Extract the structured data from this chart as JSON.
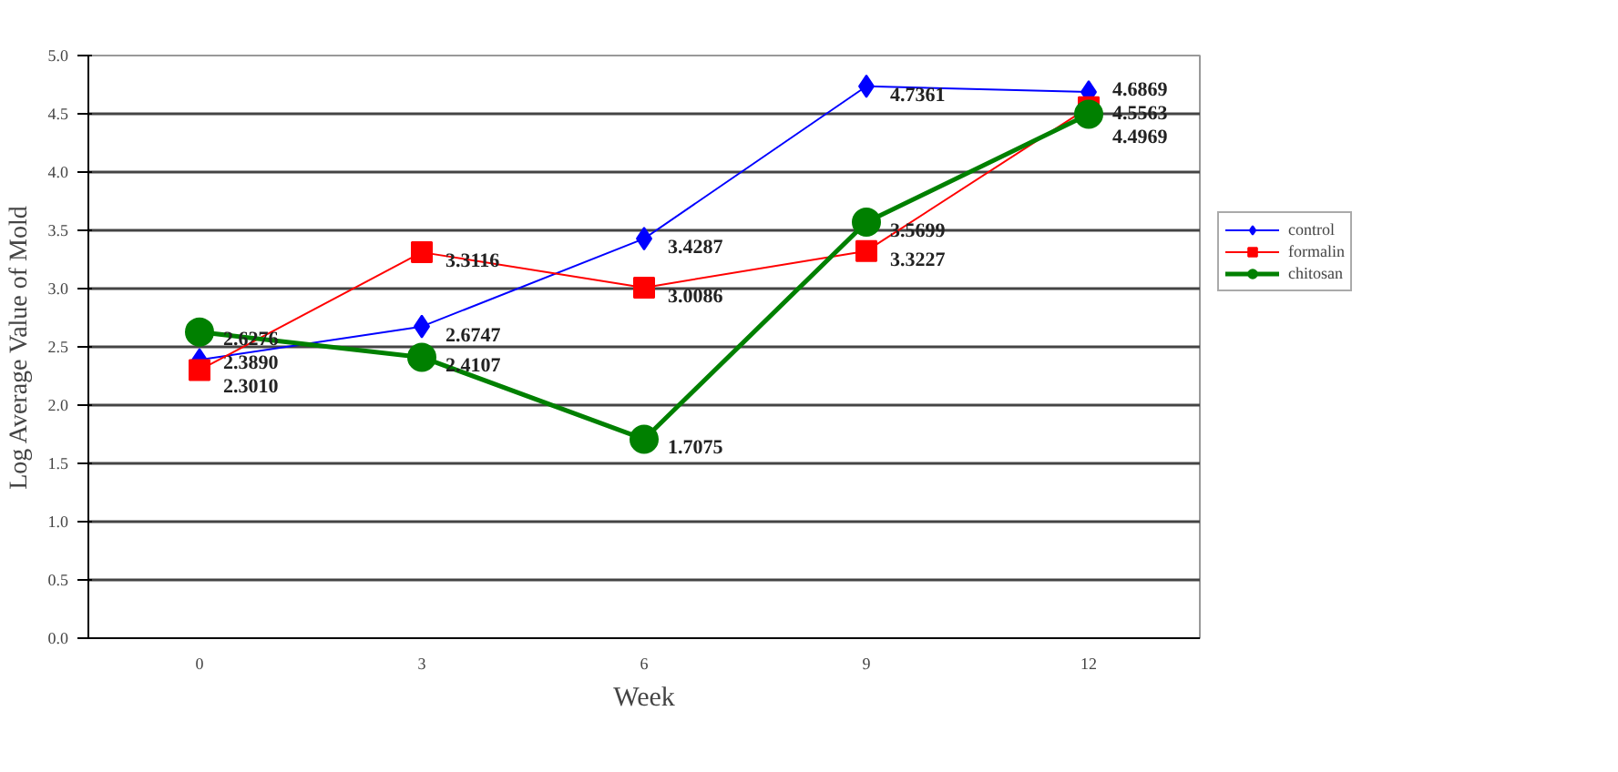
{
  "chart_data": {
    "type": "line",
    "xlabel": "Week",
    "ylabel": "Log Average Value of Mold",
    "categories": [
      "0",
      "3",
      "6",
      "9",
      "12"
    ],
    "ylim": [
      0,
      5
    ],
    "yticks": [
      "0.0",
      "0.5",
      "1.0",
      "1.5",
      "2.0",
      "2.5",
      "3.0",
      "3.5",
      "4.0",
      "4.5",
      "5.0"
    ],
    "grid": "y",
    "legend": "right",
    "series": [
      {
        "name": "control",
        "color": "#0000ff",
        "marker": "diamond",
        "values": [
          2.389,
          2.6747,
          3.4287,
          4.7361,
          4.6869
        ],
        "value_labels": [
          "2.3890",
          "2.6747",
          "3.4287",
          "4.7361",
          "4.6869"
        ]
      },
      {
        "name": "formalin",
        "color": "#ff0000",
        "marker": "square",
        "values": [
          2.301,
          3.3116,
          3.0086,
          3.3227,
          4.5563
        ],
        "value_labels": [
          "2.3010",
          "3.3116",
          "3.0086",
          "3.3227",
          "4.5563"
        ]
      },
      {
        "name": "chitosan",
        "color": "#008000",
        "marker": "circle",
        "values": [
          2.6276,
          2.4107,
          1.7075,
          3.5699,
          4.4969
        ],
        "value_labels": [
          "2.6276",
          "2.4107",
          "1.7075",
          "3.5699",
          "4.4969"
        ]
      }
    ]
  }
}
